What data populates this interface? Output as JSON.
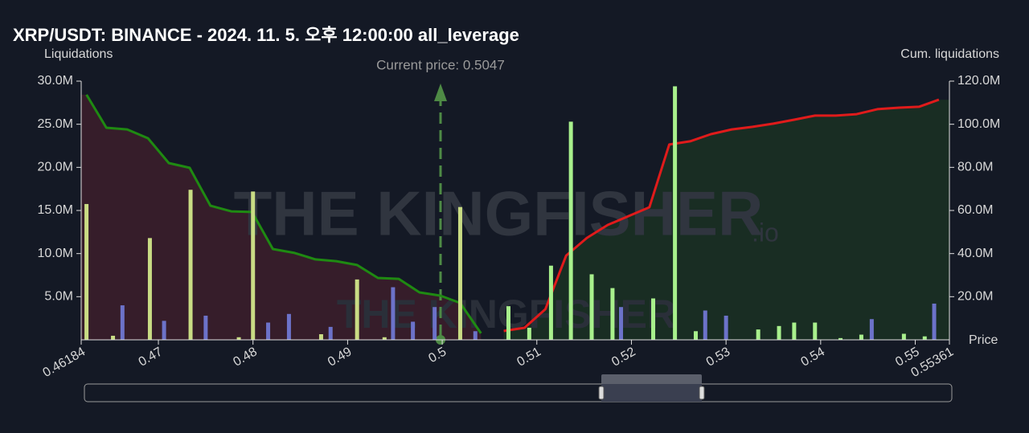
{
  "chart_data": {
    "type": "bar",
    "title": "XRP/USDT: BINANCE - 2024. 11. 5. 오후 12:00:00 all_leverage",
    "y_label": "Liquidations",
    "y2_label": "Cum. liquidations",
    "x_label": "Price",
    "annotation": "Current price: 0.5047",
    "watermark": "THE KINGFISHER",
    "watermark_suffix": ".io",
    "xlim": [
      0.46184,
      0.55361
    ],
    "xticks": [
      0.46184,
      0.47,
      0.48,
      0.49,
      0.5,
      0.51,
      0.52,
      0.53,
      0.54,
      0.55,
      0.55361
    ],
    "ylim": [
      0,
      30000000
    ],
    "yticks": [
      {
        "value": 5000000,
        "label": "5.0M"
      },
      {
        "value": 10000000,
        "label": "10.0M"
      },
      {
        "value": 15000000,
        "label": "15.0M"
      },
      {
        "value": 20000000,
        "label": "20.0M"
      },
      {
        "value": 25000000,
        "label": "25.0M"
      },
      {
        "value": 30000000,
        "label": "30.0M"
      }
    ],
    "y2lim": [
      0,
      120000000
    ],
    "y2ticks": [
      {
        "value": 20000000,
        "label": "20.0M"
      },
      {
        "value": 40000000,
        "label": "40.0M"
      },
      {
        "value": 60000000,
        "label": "60.0M"
      },
      {
        "value": 80000000,
        "label": "80.0M"
      },
      {
        "value": 100000000,
        "label": "100.0M"
      },
      {
        "value": 120000000,
        "label": "120.0M"
      }
    ],
    "series": [
      {
        "type": "bar",
        "color": "#c9dc84",
        "x": [
          0.4624,
          0.4652,
          0.4691,
          0.4734,
          0.4785,
          0.48,
          0.4872,
          0.491,
          0.4939,
          0.5019
        ],
        "values": [
          15750000,
          470000,
          11800000,
          17400000,
          300000,
          17200000,
          650000,
          7000000,
          300000,
          15400000
        ]
      },
      {
        "type": "bar",
        "color": "#a8f08c",
        "x": [
          0.507,
          0.5092,
          0.5115,
          0.5136,
          0.5158,
          0.518,
          0.5223,
          0.5246,
          0.5268,
          0.5334,
          0.5356,
          0.5372,
          0.5394,
          0.5421,
          0.5443,
          0.5488,
          0.551
        ],
        "values": [
          3900000,
          1400000,
          8600000,
          25300000,
          7600000,
          6000000,
          4800000,
          29400000,
          1000000,
          1200000,
          1600000,
          2000000,
          2000000,
          200000,
          600000,
          700000,
          400000
        ]
      },
      {
        "type": "bar",
        "color": "#6c72c9",
        "x": [
          0.4662,
          0.4706,
          0.475,
          0.4816,
          0.4838,
          0.4882,
          0.4948,
          0.4969,
          0.4992,
          0.5035,
          0.5189,
          0.5278,
          0.53,
          0.5454,
          0.552
        ],
        "values": [
          4000000,
          2200000,
          2800000,
          2000000,
          3000000,
          1500000,
          6100000,
          2100000,
          3800000,
          1000000,
          3800000,
          3400000,
          2800000,
          2400000,
          4200000
        ]
      },
      {
        "type": "line",
        "axis": "y2",
        "color": "#1f8a12",
        "fill": "#3a1e2b",
        "x": [
          0.4624,
          0.4645,
          0.4667,
          0.4689,
          0.4711,
          0.4733,
          0.4755,
          0.4777,
          0.4799,
          0.4821,
          0.4844,
          0.4866,
          0.4888,
          0.491,
          0.4932,
          0.4954,
          0.4976,
          0.4998,
          0.5019,
          0.5041
        ],
        "values": [
          113700000,
          98400000,
          97600000,
          93500000,
          82000000,
          79800000,
          62200000,
          59600000,
          59300000,
          42100000,
          40300000,
          37300000,
          36500000,
          34700000,
          28700000,
          28300000,
          22000000,
          20500000,
          17100000,
          3000000
        ]
      },
      {
        "type": "line",
        "axis": "y2",
        "color": "#e01b1b",
        "fill": "#1a3024",
        "x": [
          0.5065,
          0.5087,
          0.5109,
          0.5131,
          0.5153,
          0.5175,
          0.5197,
          0.5219,
          0.524,
          0.5262,
          0.5284,
          0.5306,
          0.5328,
          0.535,
          0.5372,
          0.5394,
          0.5416,
          0.5438,
          0.546,
          0.5483,
          0.5504,
          0.5525
        ],
        "values": [
          4100000,
          5600000,
          14200000,
          39100000,
          47300000,
          53300000,
          57400000,
          61500000,
          90600000,
          92100000,
          95400000,
          97600000,
          98800000,
          100300000,
          102100000,
          104000000,
          104000000,
          104700000,
          107000000,
          107700000,
          108100000,
          111400000
        ]
      }
    ]
  }
}
